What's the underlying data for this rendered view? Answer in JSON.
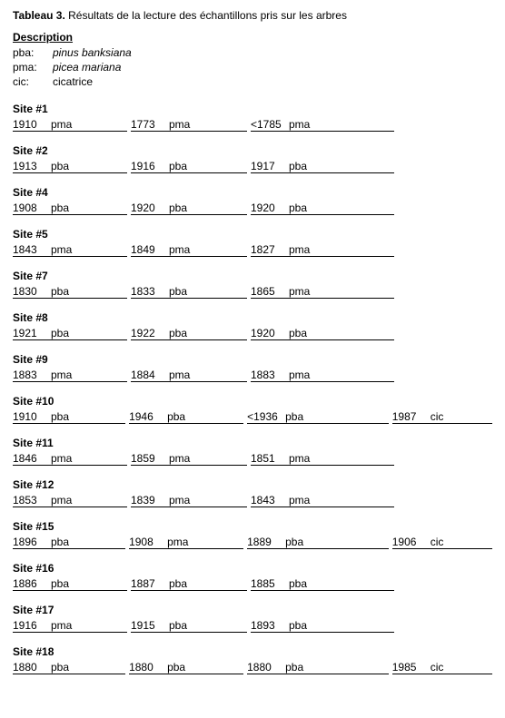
{
  "title_bold": "Tableau 3.",
  "title_rest": "Résultats de la lecture des échantillons pris sur les arbres",
  "description_heading": "Description",
  "legend": [
    {
      "abbr": "pba:",
      "def": "pinus banksiana",
      "italic": true
    },
    {
      "abbr": "pma:",
      "def": "picea mariana",
      "italic": true
    },
    {
      "abbr": "cic:",
      "def": "cicatrice",
      "italic": false
    }
  ],
  "sites": [
    {
      "label": "Site #1",
      "samples": [
        {
          "year": "1910",
          "type": "pma"
        },
        {
          "year": "1773",
          "type": "pma"
        },
        {
          "year": "<1785",
          "type": "pma"
        }
      ]
    },
    {
      "label": "Site #2",
      "samples": [
        {
          "year": "1913",
          "type": "pba"
        },
        {
          "year": "1916",
          "type": "pba"
        },
        {
          "year": "1917",
          "type": "pba"
        }
      ]
    },
    {
      "label": "Site #4",
      "samples": [
        {
          "year": "1908",
          "type": "pba"
        },
        {
          "year": "1920",
          "type": "pba"
        },
        {
          "year": "1920",
          "type": "pba"
        }
      ]
    },
    {
      "label": "Site #5",
      "samples": [
        {
          "year": "1843",
          "type": "pma"
        },
        {
          "year": "1849",
          "type": "pma"
        },
        {
          "year": "1827",
          "type": "pma"
        }
      ]
    },
    {
      "label": "Site #7",
      "samples": [
        {
          "year": "1830",
          "type": "pba"
        },
        {
          "year": "1833",
          "type": "pba"
        },
        {
          "year": "1865",
          "type": "pma"
        }
      ]
    },
    {
      "label": "Site #8",
      "samples": [
        {
          "year": "1921",
          "type": "pba"
        },
        {
          "year": "1922",
          "type": "pba"
        },
        {
          "year": "1920",
          "type": "pba"
        }
      ]
    },
    {
      "label": "Site #9",
      "samples": [
        {
          "year": "1883",
          "type": "pma"
        },
        {
          "year": "1884",
          "type": "pma"
        },
        {
          "year": "1883",
          "type": "pma"
        }
      ]
    },
    {
      "label": "Site #10",
      "samples": [
        {
          "year": "1910",
          "type": "pba"
        },
        {
          "year": "1946",
          "type": "pba"
        },
        {
          "year": "<1936",
          "type": "pba"
        },
        {
          "year": "1987",
          "type": "cic"
        }
      ]
    },
    {
      "label": "Site #11",
      "samples": [
        {
          "year": "1846",
          "type": "pma"
        },
        {
          "year": "1859",
          "type": "pma"
        },
        {
          "year": "1851",
          "type": "pma"
        }
      ]
    },
    {
      "label": "Site #12",
      "samples": [
        {
          "year": "1853",
          "type": "pma"
        },
        {
          "year": "1839",
          "type": "pma"
        },
        {
          "year": "1843",
          "type": "pma"
        }
      ]
    },
    {
      "label": "Site #15",
      "samples": [
        {
          "year": "1896",
          "type": "pba"
        },
        {
          "year": "1908",
          "type": "pma"
        },
        {
          "year": "1889",
          "type": "pba"
        },
        {
          "year": "1906",
          "type": "cic"
        }
      ]
    },
    {
      "label": "Site #16",
      "samples": [
        {
          "year": "1886",
          "type": "pba"
        },
        {
          "year": "1887",
          "type": "pba"
        },
        {
          "year": "1885",
          "type": "pba"
        }
      ]
    },
    {
      "label": "Site #17",
      "samples": [
        {
          "year": "1916",
          "type": "pma"
        },
        {
          "year": "1915",
          "type": "pba"
        },
        {
          "year": "1893",
          "type": "pba"
        }
      ]
    },
    {
      "label": "Site #18",
      "samples": [
        {
          "year": "1880",
          "type": "pba"
        },
        {
          "year": "1880",
          "type": "pba"
        },
        {
          "year": "1880",
          "type": "pba"
        },
        {
          "year": "1985",
          "type": "cic"
        }
      ]
    }
  ],
  "column_widths": [
    "w1",
    "w2",
    "w3",
    "w4"
  ]
}
